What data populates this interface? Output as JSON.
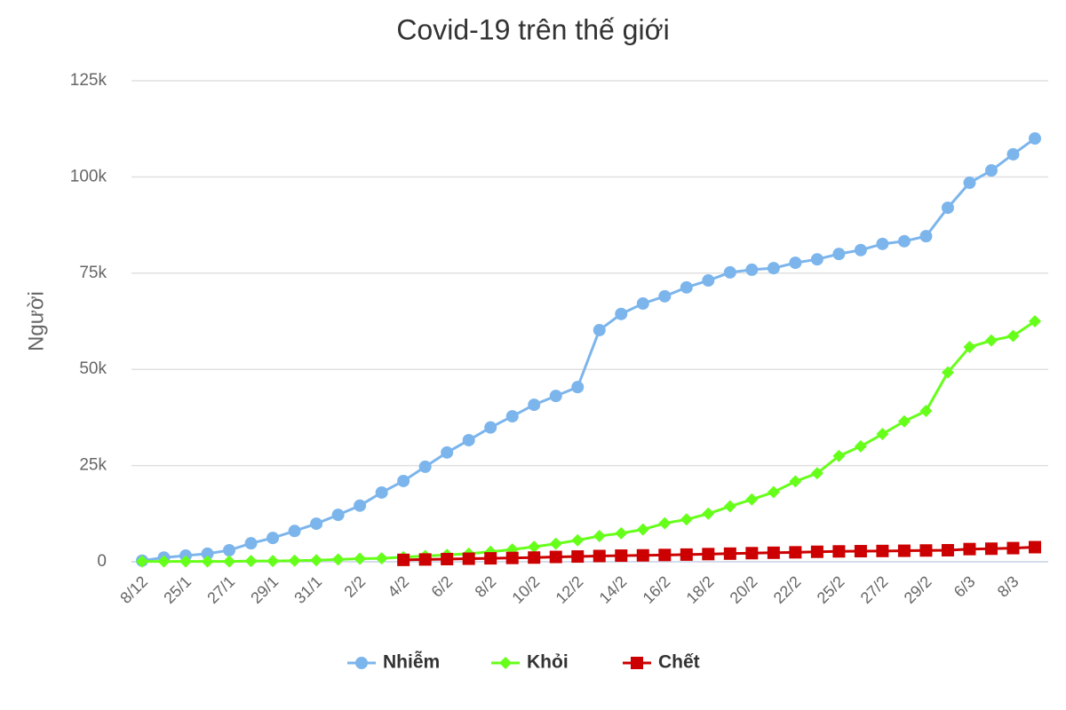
{
  "chart_data": {
    "type": "line",
    "title": "Covid-19 trên thế giới",
    "y_label": "Người",
    "categories": [
      "8/12",
      null,
      "25/1",
      null,
      "27/1",
      null,
      "29/1",
      null,
      "31/1",
      null,
      "2/2",
      null,
      "4/2",
      null,
      "6/2",
      null,
      "8/2",
      null,
      "10/2",
      null,
      "12/2",
      null,
      "14/2",
      null,
      "16/2",
      null,
      "18/2",
      null,
      "20/2",
      null,
      "22/2",
      null,
      "25/2",
      null,
      "27/2",
      null,
      "29/2",
      null,
      "6/3",
      null,
      "8/3",
      null
    ],
    "series": [
      {
        "name": "Nhiễm",
        "color": "#7cb5ec",
        "marker": "circle",
        "values": [
          300,
          1100,
          1600,
          2100,
          3000,
          4800,
          6200,
          8000,
          9900,
          12200,
          14600,
          18000,
          21000,
          24700,
          28400,
          31600,
          34900,
          37800,
          40800,
          43100,
          45400,
          60200,
          64400,
          67100,
          69000,
          71300,
          73100,
          75200,
          75900,
          76300,
          77700,
          78600,
          80000,
          81000,
          82600,
          83300,
          84600,
          92000,
          98500,
          101700,
          105900,
          110000
        ]
      },
      {
        "name": "Khỏi",
        "color": "#66ff1a",
        "marker": "diamond",
        "values": [
          100,
          100,
          100,
          100,
          100,
          200,
          200,
          300,
          400,
          600,
          800,
          900,
          1200,
          1500,
          1800,
          2100,
          2600,
          3200,
          3900,
          4700,
          5600,
          6700,
          7400,
          8400,
          10000,
          11000,
          12500,
          14400,
          16200,
          18100,
          20900,
          23000,
          27500,
          30000,
          33200,
          36500,
          39200,
          49200,
          55800,
          57500,
          58700,
          62500
        ]
      },
      {
        "name": "Chết",
        "color": "#cc0000",
        "marker": "square",
        "values": [
          null,
          null,
          null,
          null,
          null,
          null,
          null,
          null,
          null,
          null,
          null,
          null,
          500,
          600,
          700,
          800,
          900,
          1000,
          1100,
          1260,
          1370,
          1500,
          1600,
          1670,
          1770,
          1870,
          2000,
          2120,
          2240,
          2350,
          2460,
          2600,
          2700,
          2760,
          2810,
          2870,
          2940,
          3000,
          3300,
          3400,
          3550,
          3800
        ]
      }
    ],
    "ylim": [
      0,
      125000
    ],
    "yticks": [
      0,
      {
        "value": 25000,
        "label": "25k"
      },
      {
        "value": 50000,
        "label": "50k"
      },
      {
        "value": 75000,
        "label": "75k"
      },
      {
        "value": 100000,
        "label": "100k"
      },
      {
        "value": 125000,
        "label": "125k"
      }
    ],
    "grid": true,
    "legend": "bottom"
  }
}
